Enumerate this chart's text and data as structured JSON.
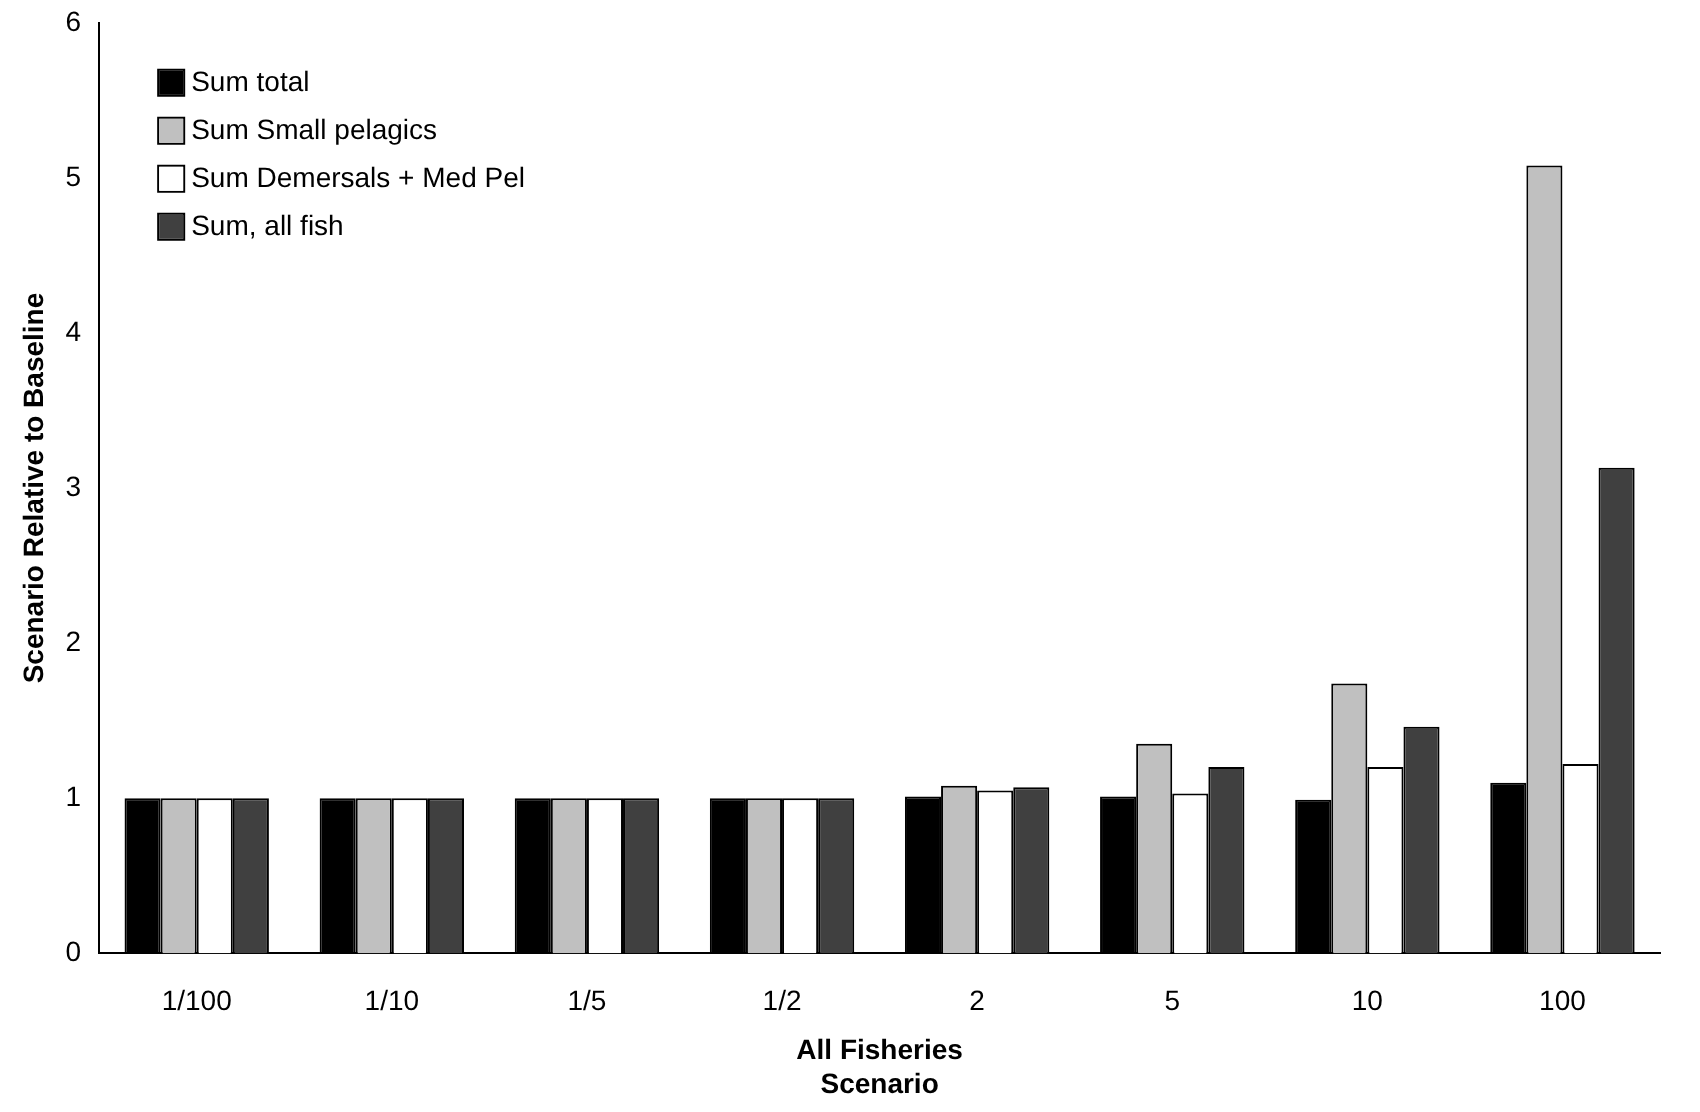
{
  "chart_data": {
    "type": "bar",
    "xlabel": "All Fisheries\nScenario",
    "ylabel": "Scenario Relative to Baseline",
    "categories": [
      "1/100",
      "1/10",
      "1/5",
      "1/2",
      "2",
      "5",
      "10",
      "100"
    ],
    "series": [
      {
        "name": "Sum total",
        "color": "#000000",
        "values": [
          1,
          1,
          1,
          1,
          1.01,
          1.01,
          0.99,
          1.1
        ]
      },
      {
        "name": "Sum Small pelagics",
        "color": "#c0c0c0",
        "values": [
          1,
          1,
          1,
          1,
          1.08,
          1.35,
          1.74,
          5.08
        ]
      },
      {
        "name": "Sum Demersals + Med Pel",
        "color": "#ffffff",
        "values": [
          1,
          1,
          1,
          1,
          1.05,
          1.03,
          1.2,
          1.22
        ]
      },
      {
        "name": "Sum, all fish",
        "color": "#404040",
        "values": [
          1,
          1,
          1,
          1,
          1.07,
          1.2,
          1.46,
          3.13
        ]
      }
    ],
    "ylim": [
      0,
      6
    ],
    "yticks": [
      0,
      1,
      2,
      3,
      4,
      5,
      6
    ],
    "grid": false,
    "legend": "top left"
  }
}
